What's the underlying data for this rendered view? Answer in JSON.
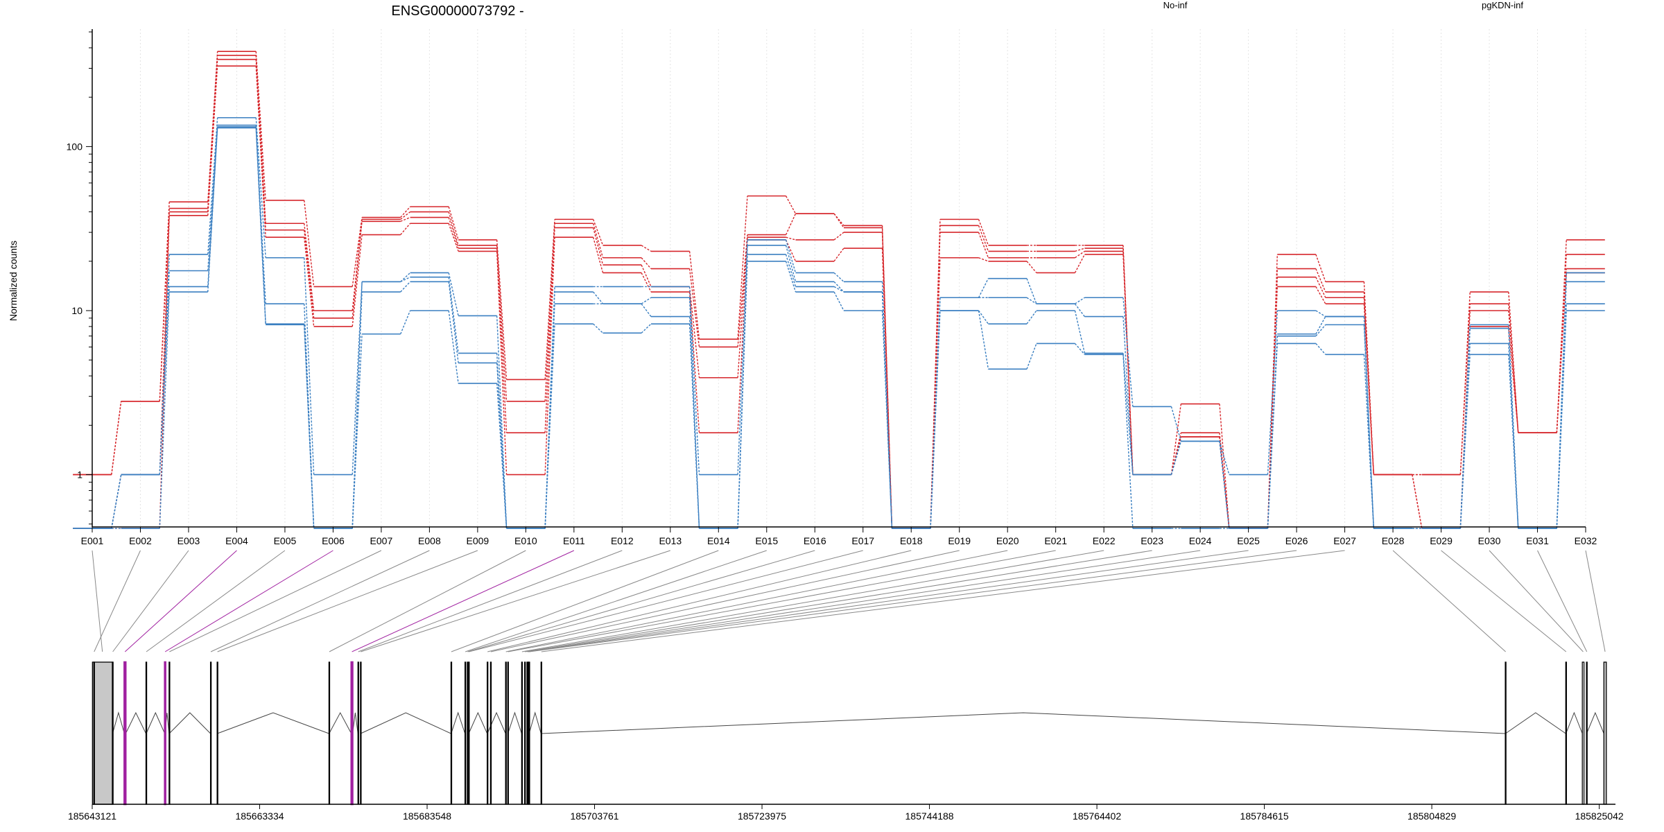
{
  "chart_data": {
    "type": "line",
    "title": "ENSG00000073792 -",
    "ylabel": "Normalized counts",
    "yscale": "log",
    "ylim": [
      0.48,
      520
    ],
    "yticks": [
      1,
      10,
      100
    ],
    "ytick_labels": [
      "1",
      "10",
      "100"
    ],
    "grid": "x-dashed",
    "legend_placement": "top-right",
    "categories": [
      "E001",
      "E002",
      "E003",
      "E004",
      "E005",
      "E006",
      "E007",
      "E008",
      "E009",
      "E010",
      "E011",
      "E012",
      "E013",
      "E014",
      "E015",
      "E016",
      "E017",
      "E018",
      "E019",
      "E020",
      "E021",
      "E022",
      "E023",
      "E024",
      "E025",
      "E026",
      "E027",
      "E028",
      "E029",
      "E030",
      "E031",
      "E032"
    ],
    "series": [
      {
        "name": "No-inf",
        "color": "#d6262b",
        "values": [
          1,
          2.8,
          46,
          380,
          47,
          14,
          37,
          43,
          27,
          3.8,
          36,
          25,
          23,
          6.7,
          50,
          39,
          33,
          0.47,
          36,
          25,
          25,
          25,
          1,
          2.7,
          0.47,
          22,
          15,
          1,
          1,
          13,
          1.8,
          27
        ]
      },
      {
        "name": "",
        "color": "#d6262b",
        "values": [
          1,
          2.8,
          42,
          360,
          34,
          10,
          36,
          40,
          25,
          2.8,
          34,
          21,
          18,
          6,
          29,
          39,
          32,
          0.47,
          33,
          23,
          23,
          24,
          1,
          1.8,
          0.47,
          18,
          13,
          1,
          1,
          11,
          1.8,
          22
        ]
      },
      {
        "name": "",
        "color": "#d6262b",
        "values": [
          0.47,
          1,
          40,
          340,
          31,
          9,
          35,
          37,
          24,
          1.8,
          32,
          19,
          14,
          3.9,
          28,
          27,
          30,
          0.47,
          30,
          21,
          21,
          23,
          1,
          1.7,
          0.47,
          16,
          12,
          1,
          0.47,
          10,
          1.8,
          18
        ]
      },
      {
        "name": "",
        "color": "#d6262b",
        "values": [
          0.47,
          0.47,
          38,
          310,
          28,
          8,
          29,
          34,
          23,
          1,
          28,
          17,
          13,
          1.8,
          27,
          20,
          24,
          0.47,
          21,
          20,
          17,
          22,
          1,
          1.7,
          0.47,
          14,
          11,
          1,
          0.47,
          8,
          1.8,
          17
        ]
      },
      {
        "name": "pgKDN-inf",
        "color": "#3a7fc1",
        "values": [
          0.47,
          1,
          22,
          150,
          21,
          1,
          15,
          17,
          9.3,
          0.47,
          14,
          14,
          14,
          1,
          27,
          17,
          15,
          0.47,
          12,
          15.7,
          11,
          12,
          2.6,
          1.6,
          1,
          10,
          9.2,
          0.47,
          0.47,
          8.2,
          0.47,
          17
        ]
      },
      {
        "name": "",
        "color": "#3a7fc1",
        "values": [
          0.47,
          1,
          17.5,
          135,
          11,
          0.47,
          15,
          16,
          5.5,
          0.47,
          13,
          11,
          12,
          0.47,
          25,
          15,
          13,
          0.47,
          12,
          12,
          11,
          9.2,
          1,
          1.6,
          0.47,
          7.2,
          9.2,
          0.47,
          0.47,
          7.8,
          0.47,
          15
        ]
      },
      {
        "name": "",
        "color": "#3a7fc1",
        "values": [
          0.47,
          1,
          14,
          132,
          8.3,
          0.47,
          13,
          15,
          4.8,
          0.47,
          11,
          11,
          9.2,
          0.47,
          22,
          14,
          13,
          0.47,
          10,
          8.3,
          10,
          5.5,
          1,
          1.6,
          0.47,
          7,
          8.2,
          0.47,
          0.47,
          6.3,
          0.47,
          11
        ]
      },
      {
        "name": "",
        "color": "#3a7fc1",
        "values": [
          0.47,
          0.47,
          13,
          130,
          8.2,
          0.47,
          7.2,
          10,
          3.6,
          0.47,
          8.3,
          7.3,
          8.3,
          0.47,
          20,
          13,
          10,
          0.47,
          10,
          4.4,
          6.3,
          5.4,
          0.47,
          0.47,
          0.47,
          6.3,
          5.4,
          0.47,
          0.47,
          5.4,
          0.47,
          10
        ]
      }
    ],
    "gene_model": {
      "xlim": [
        185643121,
        185827000
      ],
      "xticks": [
        185643121,
        185663334,
        185683548,
        185703761,
        185723975,
        185744188,
        185764402,
        185784615,
        185804829,
        185825042
      ],
      "xtick_labels": [
        "185643121",
        "185663334",
        "185683548",
        "185703761",
        "185723975",
        "185744188",
        "185764402",
        "185784615",
        "185804829",
        "185825042"
      ],
      "highlight_color": "#a020a0",
      "exon_fill": "#c8c8c8",
      "exons": [
        {
          "id": "E001",
          "start": 185643150,
          "end": 185645550,
          "filled": true
        },
        {
          "id": "E002",
          "start": 185643310,
          "end": 185643330
        },
        {
          "id": "E003",
          "start": 185645560,
          "end": 185645580
        },
        {
          "id": "E004",
          "start": 185647000,
          "end": 185647160,
          "highlight": true
        },
        {
          "id": "E005",
          "start": 185649610,
          "end": 185649640
        },
        {
          "id": "E006",
          "start": 185651880,
          "end": 185651900,
          "highlight": true
        },
        {
          "id": "E007",
          "start": 185652400,
          "end": 185652420
        },
        {
          "id": "E008",
          "start": 185657400,
          "end": 185657420
        },
        {
          "id": "E009",
          "start": 185658200,
          "end": 185658220
        },
        {
          "id": "E010",
          "start": 185671700,
          "end": 185671720
        },
        {
          "id": "E011",
          "start": 185674400,
          "end": 185674550,
          "highlight": true
        },
        {
          "id": "E012",
          "start": 185675200,
          "end": 185675220
        },
        {
          "id": "E013",
          "start": 185675500,
          "end": 185675520
        },
        {
          "id": "E014",
          "start": 185686430,
          "end": 185686450
        },
        {
          "id": "E015",
          "start": 185688120,
          "end": 185688140
        },
        {
          "id": "E016",
          "start": 185688400,
          "end": 185688440
        },
        {
          "id": "E017",
          "start": 185688550,
          "end": 185688570
        },
        {
          "id": "E018",
          "start": 185690800,
          "end": 185690820
        },
        {
          "id": "E019",
          "start": 185691200,
          "end": 185691220
        },
        {
          "id": "E020",
          "start": 185693020,
          "end": 185693040
        },
        {
          "id": "E021",
          "start": 185693280,
          "end": 185693300
        },
        {
          "id": "E022",
          "start": 185694960,
          "end": 185694980
        },
        {
          "id": "E023",
          "start": 185695320,
          "end": 185695340
        },
        {
          "id": "E024",
          "start": 185695600,
          "end": 185695620
        },
        {
          "id": "E025",
          "start": 185695720,
          "end": 185695740
        },
        {
          "id": "E026",
          "start": 185695840,
          "end": 185695860
        },
        {
          "id": "E027",
          "start": 185697300,
          "end": 185697320
        },
        {
          "id": "E028",
          "start": 185813700,
          "end": 185813720
        },
        {
          "id": "E029",
          "start": 185821000,
          "end": 185821020
        },
        {
          "id": "E030",
          "start": 185823000,
          "end": 185823200
        },
        {
          "id": "E031",
          "start": 185823500,
          "end": 185823520
        },
        {
          "id": "E032",
          "start": 185825600,
          "end": 185825900,
          "filled": true
        }
      ],
      "junctions": [
        [
          185645580,
          185647000
        ],
        [
          185647160,
          185649610
        ],
        [
          185649640,
          185651880
        ],
        [
          185651900,
          185652400
        ],
        [
          185652420,
          185657400
        ],
        [
          185658220,
          185671700
        ],
        [
          185671720,
          185674400
        ],
        [
          185674550,
          185675200
        ],
        [
          185675520,
          185686430
        ],
        [
          185686450,
          185688120
        ],
        [
          185688570,
          185690800
        ],
        [
          185690820,
          185693020
        ],
        [
          185693300,
          185694960
        ],
        [
          185695860,
          185697300
        ],
        [
          185697320,
          185813700
        ],
        [
          185813720,
          185821000
        ],
        [
          185821020,
          185823000
        ],
        [
          185823520,
          185825600
        ]
      ]
    }
  }
}
